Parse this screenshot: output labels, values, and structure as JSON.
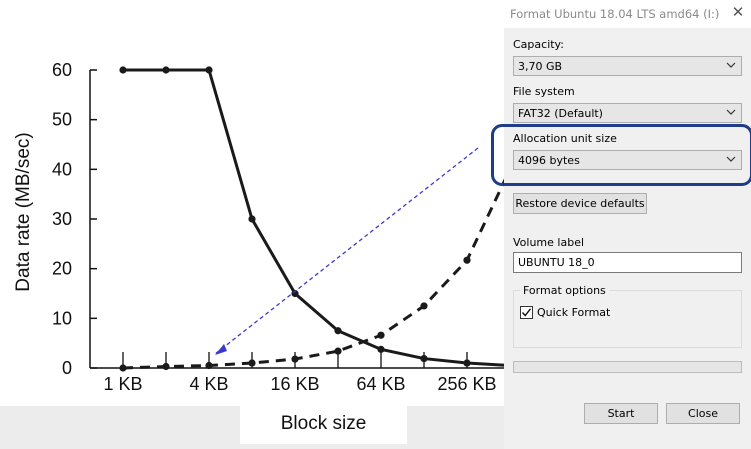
{
  "chart_data": {
    "type": "line",
    "categories": [
      "1 KB",
      "2 KB",
      "4 KB",
      "8 KB",
      "16 KB",
      "32 KB",
      "64 KB",
      "128 KB",
      "256 KB",
      "512 KB"
    ],
    "xtick_labels": [
      "1 KB",
      "4 KB",
      "16 KB",
      "64 KB",
      "256 KB"
    ],
    "ylabel": "Data rate (MB/sec)",
    "xlabel": "Block size",
    "ylim": [
      0,
      60
    ],
    "yticks": [
      "0",
      "10",
      "20",
      "30",
      "40",
      "50",
      "60"
    ],
    "series": [
      {
        "values": [
          60,
          60,
          60,
          30,
          15,
          7.5,
          3.75,
          1.9,
          1,
          0.5
        ],
        "style": "solid"
      },
      {
        "values": [
          0,
          0.3,
          0.5,
          1,
          1.8,
          3.4,
          6.6,
          12.5,
          21.7,
          40
        ],
        "style": "dashed"
      }
    ],
    "grid": false
  },
  "dialog": {
    "title": "Format Ubuntu 18.04 LTS amd64 (I:)",
    "close_glyph": "✕",
    "capacity_label": "Capacity:",
    "capacity_value": "3,70 GB",
    "filesystem_label": "File system",
    "filesystem_value": "FAT32 (Default)",
    "alloc_label": "Allocation unit size",
    "alloc_value": "4096 bytes",
    "restore_label": "Restore device defaults",
    "volume_label": "Volume label",
    "volume_value": "UBUNTU 18_0",
    "format_options_label": "Format options",
    "quick_format_label": "Quick Format",
    "quick_format_checked": true,
    "progress": 0,
    "start_label": "Start",
    "close_label": "Close"
  },
  "colors": {
    "highlight": "#1f3c88",
    "arrow": "#3a3ad0",
    "series": "#1a1a1a"
  },
  "icons": [
    "chevron-down-icon",
    "close-icon",
    "checkmark-icon"
  ]
}
